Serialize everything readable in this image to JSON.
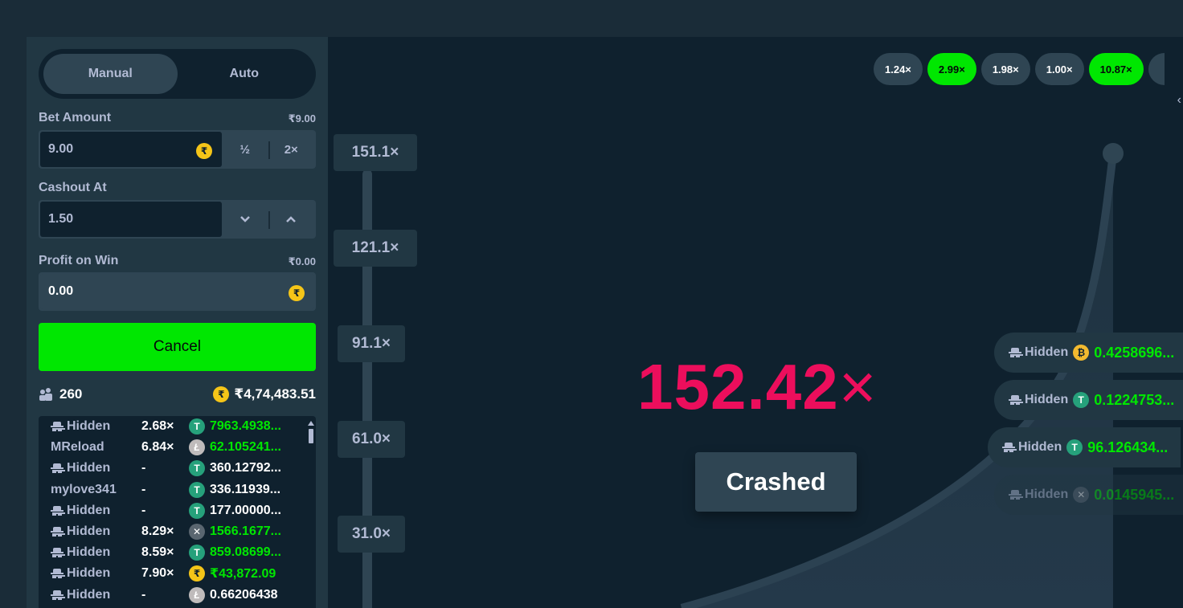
{
  "sidebar": {
    "mode_tabs": [
      {
        "label": "Manual",
        "active": true
      },
      {
        "label": "Auto",
        "active": false
      }
    ],
    "bet_amount": {
      "label": "Bet Amount",
      "display_value": "₹9.00",
      "value": "9.00",
      "half_label": "½",
      "double_label": "2×",
      "currency_icon": "rupee-coin-icon"
    },
    "cashout": {
      "label": "Cashout At",
      "value": "1.50",
      "down_icon": "chevron-down-icon",
      "up_icon": "chevron-up-icon"
    },
    "profit": {
      "label": "Profit on Win",
      "display_value": "₹0.00",
      "value": "0.00"
    },
    "cancel_label": "Cancel",
    "stats": {
      "players": "260",
      "total": "₹4,74,483.51"
    },
    "bets": [
      {
        "user": "Hidden",
        "hidden": true,
        "mult": "2.68×",
        "coin": "T",
        "coin_type": "usdt",
        "amount": "7963.4938...",
        "win": true
      },
      {
        "user": "MReload",
        "hidden": false,
        "mult": "6.84×",
        "coin": "Ł",
        "coin_type": "ltc",
        "amount": "62.105241...",
        "win": true
      },
      {
        "user": "Hidden",
        "hidden": true,
        "mult": "-",
        "coin": "T",
        "coin_type": "usdt",
        "amount": "360.12792...",
        "win": false
      },
      {
        "user": "mylove341",
        "hidden": false,
        "mult": "-",
        "coin": "T",
        "coin_type": "usdt",
        "amount": "336.11939...",
        "win": false
      },
      {
        "user": "Hidden",
        "hidden": true,
        "mult": "-",
        "coin": "T",
        "coin_type": "usdt",
        "amount": "177.00000...",
        "win": false
      },
      {
        "user": "Hidden",
        "hidden": true,
        "mult": "8.29×",
        "coin": "✕",
        "coin_type": "xrp",
        "amount": "1566.1677...",
        "win": true
      },
      {
        "user": "Hidden",
        "hidden": true,
        "mult": "8.59×",
        "coin": "T",
        "coin_type": "usdt",
        "amount": "859.08699...",
        "win": true
      },
      {
        "user": "Hidden",
        "hidden": true,
        "mult": "7.90×",
        "coin": "₹",
        "coin_type": "inr",
        "amount": "₹43,872.09",
        "win": true
      },
      {
        "user": "Hidden",
        "hidden": true,
        "mult": "-",
        "coin": "Ł",
        "coin_type": "ltc",
        "amount": "0.66206438",
        "win": false
      }
    ]
  },
  "game": {
    "history": [
      {
        "value": "1.24×",
        "green": false
      },
      {
        "value": "2.99×",
        "green": true
      },
      {
        "value": "1.98×",
        "green": false
      },
      {
        "value": "1.00×",
        "green": false
      },
      {
        "value": "10.87×",
        "green": true
      }
    ],
    "history_prev_icon": "chevron-left-icon",
    "axis": [
      "151.1×",
      "121.1×",
      "91.1×",
      "61.0×",
      "31.0×"
    ],
    "multiplier": "152.42",
    "multiplier_suffix": "×",
    "status": "Crashed",
    "payouts": [
      {
        "user": "Hidden",
        "coin": "₿",
        "coin_type": "bnb",
        "amount": "0.4258696..."
      },
      {
        "user": "Hidden",
        "coin": "T",
        "coin_type": "usdt",
        "amount": "0.1224753..."
      },
      {
        "user": "Hidden",
        "coin": "T",
        "coin_type": "usdt",
        "amount": "96.126434..."
      },
      {
        "user": "Hidden",
        "coin": "✕",
        "coin_type": "xrp",
        "amount": "0.0145945..."
      }
    ]
  },
  "colors": {
    "accent_green": "#00e701",
    "crash_pink": "#ec0e5c",
    "panel": "#213743",
    "bg": "#0f212e"
  }
}
